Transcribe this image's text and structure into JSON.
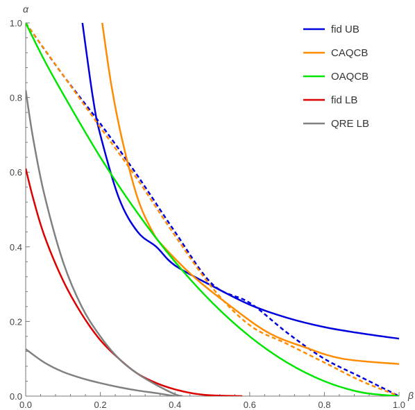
{
  "chart_data": {
    "type": "line",
    "title": "",
    "xlabel": "β",
    "ylabel": "α",
    "xlim": [
      0,
      1
    ],
    "ylim": [
      0,
      1
    ],
    "xticks": [
      "0.0",
      "0.2",
      "0.4",
      "0.6",
      "0.8",
      "1.0"
    ],
    "yticks": [
      "0.0",
      "0.2",
      "0.4",
      "0.6",
      "0.8",
      "1.0"
    ],
    "grid": false,
    "legend_position": "top-right",
    "series": [
      {
        "name": "fid UB",
        "color": "#0000dd",
        "style": "solid",
        "points": [
          [
            0.152,
            1.0
          ],
          [
            0.18,
            0.8
          ],
          [
            0.2,
            0.7
          ],
          [
            0.25,
            0.53
          ],
          [
            0.3,
            0.44
          ],
          [
            0.35,
            0.4
          ],
          [
            0.4,
            0.35
          ],
          [
            0.5,
            0.295
          ],
          [
            0.6,
            0.245
          ],
          [
            0.7,
            0.21
          ],
          [
            0.8,
            0.185
          ],
          [
            0.9,
            0.168
          ],
          [
            1.0,
            0.154
          ]
        ]
      },
      {
        "name": "",
        "color": "#0000dd",
        "style": "dashed",
        "points": [
          [
            0.0,
            1.0
          ],
          [
            0.1,
            0.86
          ],
          [
            0.2,
            0.73
          ],
          [
            0.3,
            0.59
          ],
          [
            0.4,
            0.44
          ],
          [
            0.5,
            0.3
          ],
          [
            0.6,
            0.25
          ],
          [
            0.7,
            0.17
          ],
          [
            0.8,
            0.1
          ],
          [
            0.9,
            0.05
          ],
          [
            1.0,
            0.0
          ]
        ]
      },
      {
        "name": "CAQCB",
        "color": "#ff8c00",
        "style": "solid",
        "points": [
          [
            0.205,
            1.0
          ],
          [
            0.23,
            0.83
          ],
          [
            0.26,
            0.68
          ],
          [
            0.3,
            0.53
          ],
          [
            0.34,
            0.44
          ],
          [
            0.37,
            0.4
          ],
          [
            0.45,
            0.32
          ],
          [
            0.55,
            0.24
          ],
          [
            0.65,
            0.17
          ],
          [
            0.75,
            0.13
          ],
          [
            0.85,
            0.1
          ],
          [
            1.0,
            0.086
          ]
        ]
      },
      {
        "name": "",
        "color": "#ff8c00",
        "style": "dashed",
        "points": [
          [
            0.0,
            1.0
          ],
          [
            0.1,
            0.86
          ],
          [
            0.2,
            0.72
          ],
          [
            0.3,
            0.58
          ],
          [
            0.4,
            0.43
          ],
          [
            0.5,
            0.29
          ],
          [
            0.6,
            0.19
          ],
          [
            0.7,
            0.14
          ],
          [
            0.8,
            0.09
          ],
          [
            0.9,
            0.04
          ],
          [
            1.0,
            0.0
          ]
        ]
      },
      {
        "name": "OAQCB",
        "color": "#00e600",
        "style": "solid",
        "points": [
          [
            0.0,
            1.0
          ],
          [
            0.05,
            0.9
          ],
          [
            0.1,
            0.81
          ],
          [
            0.2,
            0.64
          ],
          [
            0.3,
            0.49
          ],
          [
            0.4,
            0.36
          ],
          [
            0.5,
            0.25
          ],
          [
            0.6,
            0.16
          ],
          [
            0.7,
            0.09
          ],
          [
            0.8,
            0.04
          ],
          [
            0.9,
            0.01
          ],
          [
            1.0,
            0.0
          ]
        ]
      },
      {
        "name": "fid LB",
        "color": "#dd0000",
        "style": "solid",
        "points": [
          [
            0.0,
            0.61
          ],
          [
            0.02,
            0.53
          ],
          [
            0.05,
            0.43
          ],
          [
            0.1,
            0.31
          ],
          [
            0.15,
            0.22
          ],
          [
            0.2,
            0.15
          ],
          [
            0.25,
            0.1
          ],
          [
            0.3,
            0.06
          ],
          [
            0.35,
            0.035
          ],
          [
            0.4,
            0.018
          ],
          [
            0.45,
            0.007
          ],
          [
            0.5,
            0.002
          ],
          [
            0.58,
            0.0
          ]
        ]
      },
      {
        "name": "QRE LB",
        "color": "#808080",
        "style": "solid",
        "points": [
          [
            0.0,
            0.82
          ],
          [
            0.02,
            0.69
          ],
          [
            0.05,
            0.54
          ],
          [
            0.1,
            0.36
          ],
          [
            0.15,
            0.24
          ],
          [
            0.2,
            0.16
          ],
          [
            0.25,
            0.1
          ],
          [
            0.3,
            0.06
          ],
          [
            0.35,
            0.03
          ],
          [
            0.4,
            0.005
          ],
          [
            0.42,
            0.0
          ]
        ]
      },
      {
        "name": "",
        "color": "#808080",
        "style": "solid",
        "points": [
          [
            0.0,
            0.126
          ],
          [
            0.05,
            0.09
          ],
          [
            0.1,
            0.065
          ],
          [
            0.15,
            0.048
          ],
          [
            0.2,
            0.035
          ],
          [
            0.25,
            0.024
          ],
          [
            0.3,
            0.015
          ],
          [
            0.35,
            0.008
          ],
          [
            0.4,
            0.0
          ]
        ]
      }
    ]
  }
}
